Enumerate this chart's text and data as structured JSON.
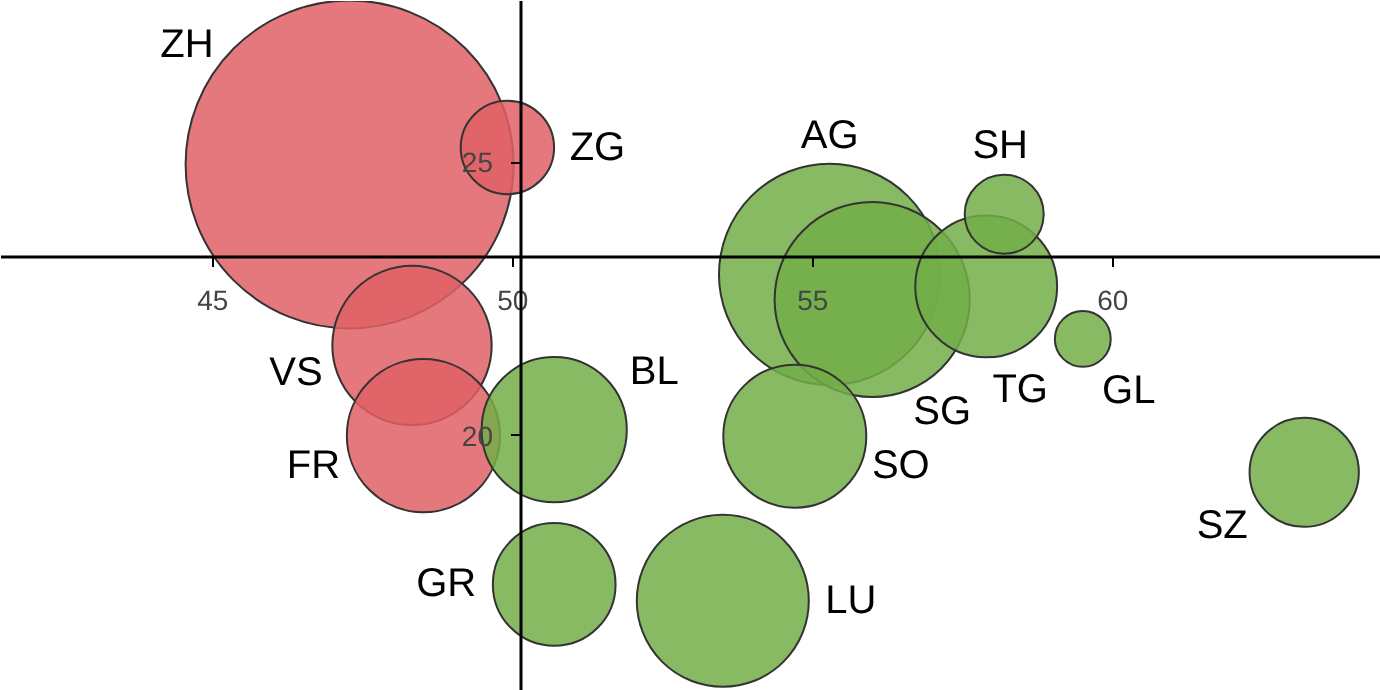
{
  "chart_data": {
    "type": "bubble",
    "xlim": [
      41.47,
      64.47
    ],
    "ylim": [
      15.33,
      27.95
    ],
    "xticks": [
      45,
      50,
      55,
      60
    ],
    "yticks": [
      20,
      25
    ],
    "grid": false,
    "series": [
      {
        "color": "#e06065",
        "x": [
          47.28,
          49.91,
          48.32,
          48.51
        ],
        "values": [
          24.96,
          25.27,
          21.65,
          20.0
        ],
        "sizes": [
          1,
          0.081,
          0.236,
          0.218
        ]
      },
      {
        "color": "#72ae48",
        "x": [
          50.69,
          50.69,
          51.13,
          53.5,
          55.28,
          55.99,
          57.89,
          58.19,
          59.5,
          54.7,
          63.19
        ],
        "values": [
          20.11,
          17.28,
          null,
          16.98,
          22.95,
          22.49,
          22.73,
          24.05,
          21.77,
          19.99,
          19.33
        ],
        "sizes": [
          0.196,
          0.14,
          null,
          0.275,
          0.455,
          0.354,
          0.187,
          0.058,
          0.029,
          0.19,
          0.111
        ]
      }
    ],
    "annotations": [
      "ZH",
      {
        "text": "ZG",
        "x": 49.91,
        "y": 25.27
      },
      {
        "text": "VS",
        "x": 48.32,
        "y": 21.65
      },
      {
        "text": "FR",
        "x": 48.51,
        "y": 20.0
      },
      {
        "text": "BL",
        "x": 50.69,
        "y": 20.11
      },
      {
        "text": "GR",
        "x": 50.69,
        "y": 17.28
      },
      {
        "text": "LU",
        "x": 53.5,
        "y": 16.98
      },
      {
        "text": "AG",
        "x": 55.28,
        "y": 22.95
      },
      {
        "text": "SH",
        "x": 58.19,
        "y": 24.05
      },
      {
        "text": "SG",
        "x": 55.99,
        "y": 22.49
      },
      {
        "text": "TG",
        "x": 57.89,
        "y": 22.73
      },
      {
        "text": "GL",
        "x": 59.5,
        "y": 21.77
      },
      {
        "text": "SO",
        "x": 54.7,
        "y": 19.99
      },
      {
        "text": "SZ",
        "x": 63.19,
        "y": 19.33
      }
    ]
  }
}
